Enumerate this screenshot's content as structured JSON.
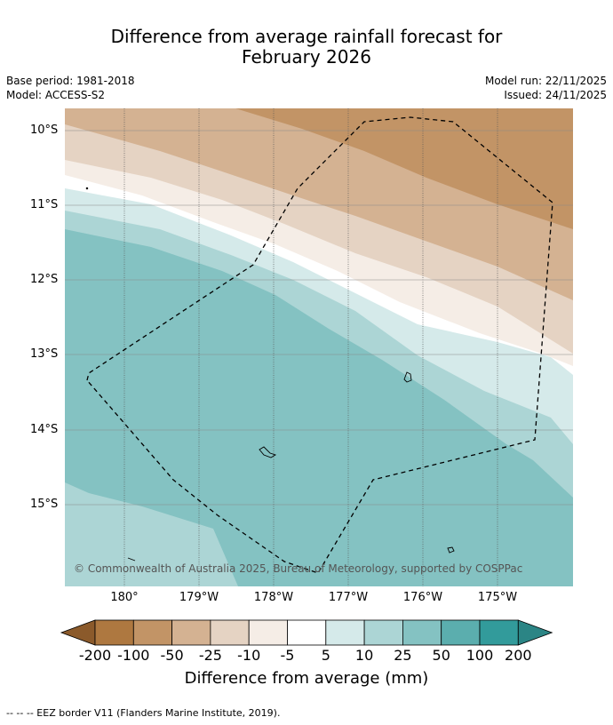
{
  "title_line1": "Difference from average rainfall forecast for",
  "title_line2": "February 2026",
  "meta_left": [
    "Base period: 1981-2018",
    "Model: ACCESS-S2"
  ],
  "meta_right": [
    "Model run: 22/11/2025",
    "Issued: 24/11/2025"
  ],
  "copyright": "© Commonwealth of Australia 2025, Bureau of Meteorology, supported by COSPPac",
  "lat_labels": [
    "10°S",
    "11°S",
    "12°S",
    "13°S",
    "14°S",
    "15°S"
  ],
  "lon_labels": [
    "180°",
    "179°W",
    "178°W",
    "177°W",
    "176°W",
    "175°W"
  ],
  "legend": {
    "title": "Difference from average (mm)",
    "ticks": [
      "-200",
      "-100",
      "-50",
      "-25",
      "-10",
      "-5",
      "5",
      "10",
      "25",
      "50",
      "100",
      "200"
    ],
    "colors": [
      "#8b5a2b",
      "#ae7840",
      "#c29466",
      "#d4b292",
      "#e5d3c3",
      "#f5ede6",
      "#ffffff",
      "#d5eaea",
      "#acd5d5",
      "#84c2c2",
      "#5baeae",
      "#329b9b",
      "#2b8585"
    ]
  },
  "map_colors": {
    "c100n": "#c29466",
    "c50n": "#d4b292",
    "c25n": "#e5d3c3",
    "c10n": "#f5ede6",
    "c5": "#ffffff",
    "c10": "#d5eaea",
    "c25": "#acd5d5",
    "c50": "#84c2c2"
  },
  "footnote": "-- -- -- EEZ border V11 (Flanders Marine Institute, 2019)."
}
